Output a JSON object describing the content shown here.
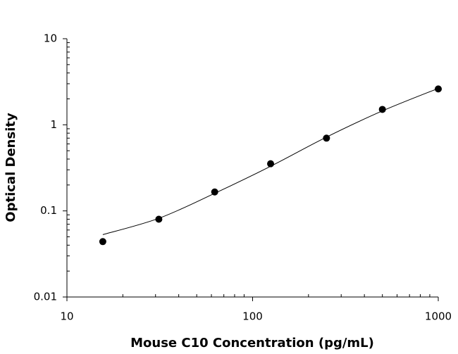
{
  "chart_data": {
    "type": "scatter",
    "x_label": "Mouse C10 Concentration (pg/mL)",
    "y_label": "Optical Density",
    "xlog": true,
    "ylog": true,
    "minor_ticks": true,
    "xlim": [
      10,
      1000
    ],
    "ylim": [
      0.01,
      10
    ],
    "xticks": [
      10,
      100,
      1000
    ],
    "yticks": [
      0.01,
      0.1,
      1,
      10
    ],
    "series": [
      {
        "mode": "markers",
        "color": "#000000",
        "x": [
          15.6,
          31.25,
          62.5,
          125,
          250,
          500,
          1000
        ],
        "values": [
          0.044,
          0.08,
          0.166,
          0.353,
          0.7,
          1.51,
          2.61
        ]
      },
      {
        "mode": "line",
        "color": "#000000",
        "x": [
          15.6,
          31.25,
          62.5,
          125,
          250,
          500,
          1000
        ],
        "values": [
          0.053,
          0.082,
          0.16,
          0.33,
          0.72,
          1.45,
          2.65
        ]
      }
    ]
  }
}
